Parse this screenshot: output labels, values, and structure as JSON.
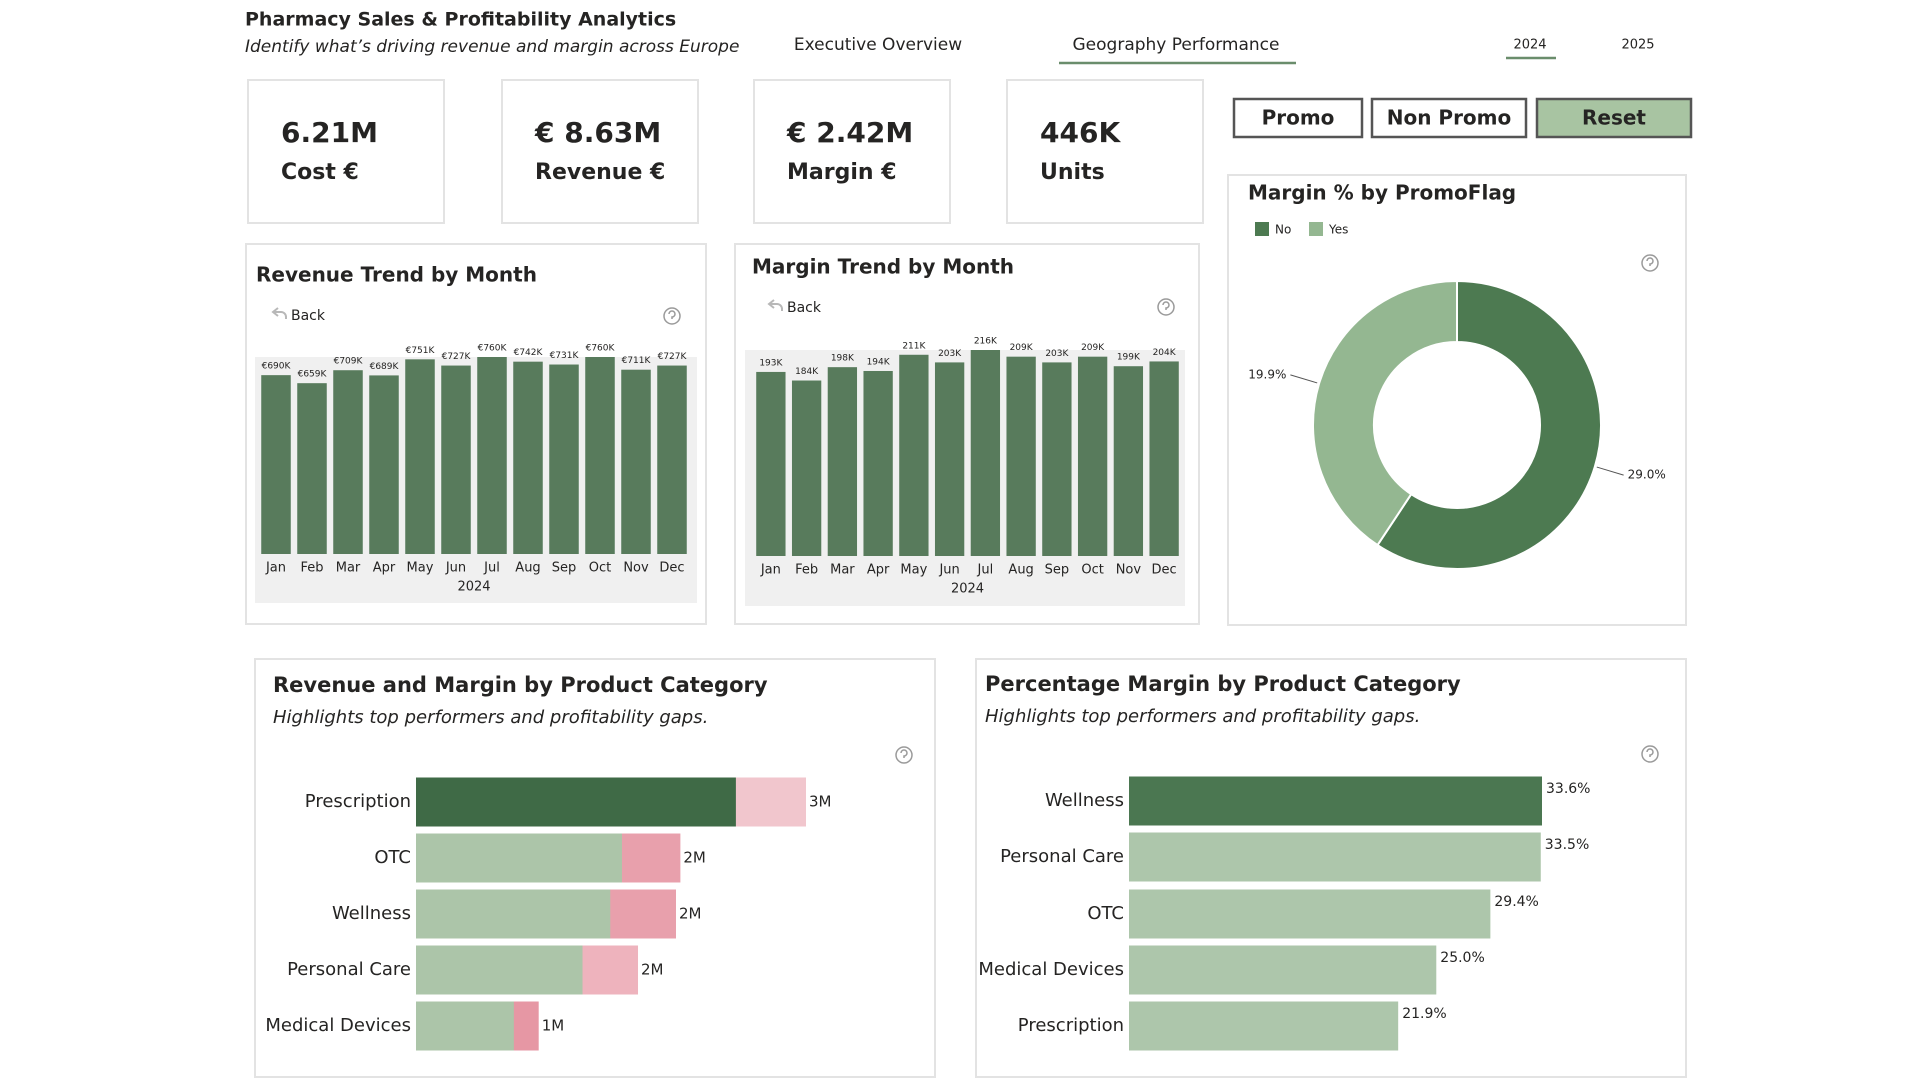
{
  "header": {
    "title": "Pharmacy Sales & Profitability Analytics",
    "subtitle": "Identify what’s driving revenue and margin across Europe"
  },
  "tabs": [
    "Executive Overview",
    "Geography Performance"
  ],
  "years": [
    "2024",
    "2025"
  ],
  "kpis": [
    {
      "value": "6.21M",
      "label": "Cost €"
    },
    {
      "value": "€ 8.63M",
      "label": "Revenue €"
    },
    {
      "value": "€ 2.42M",
      "label": "Margin €"
    },
    {
      "value": "446K",
      "label": "Units"
    }
  ],
  "buttons": [
    "Promo",
    "Non Promo",
    "Reset"
  ],
  "chart_data": [
    {
      "type": "bar",
      "title": "Revenue Trend by Month",
      "back_label": "Back",
      "xlabel": "2024",
      "categories": [
        "Jan",
        "Feb",
        "Mar",
        "Apr",
        "May",
        "Jun",
        "Jul",
        "Aug",
        "Sep",
        "Oct",
        "Nov",
        "Dec"
      ],
      "values": [
        690000,
        659000,
        709000,
        689000,
        751000,
        727000,
        760000,
        742000,
        731000,
        760000,
        711000,
        727000
      ],
      "value_labels": [
        "€690K",
        "€659K",
        "€709K",
        "€689K",
        "€751K",
        "€727K",
        "€760K",
        "€742K",
        "€731K",
        "€760K",
        "€711K",
        "€727K"
      ],
      "color": "#587b5c"
    },
    {
      "type": "bar",
      "title": "Margin Trend by Month",
      "back_label": "Back",
      "xlabel": "2024",
      "categories": [
        "Jan",
        "Feb",
        "Mar",
        "Apr",
        "May",
        "Jun",
        "Jul",
        "Aug",
        "Sep",
        "Oct",
        "Nov",
        "Dec"
      ],
      "values": [
        193000,
        184000,
        198000,
        194000,
        211000,
        203000,
        216000,
        209000,
        203000,
        209000,
        199000,
        204000
      ],
      "value_labels": [
        "193K",
        "184K",
        "198K",
        "194K",
        "211K",
        "203K",
        "216K",
        "209K",
        "203K",
        "209K",
        "199K",
        "204K"
      ],
      "color": "#587b5c"
    },
    {
      "type": "donut",
      "title": "Margin % by PromoFlag",
      "categories": [
        "No",
        "Yes"
      ],
      "values": [
        29.0,
        19.9
      ],
      "value_labels": [
        "29.0%",
        "19.9%"
      ],
      "colors": [
        "#4d7a51",
        "#94b791"
      ]
    },
    {
      "type": "hbar-overlay",
      "title": "Revenue and Margin by Product Category",
      "subtitle": "Highlights top performers and profitability gaps.",
      "categories": [
        "Prescription",
        "OTC",
        "Wellness",
        "Personal Care",
        "Medical Devices"
      ],
      "series": [
        {
          "values": [
            2670000,
            1810000,
            1780000,
            1520000,
            840000
          ],
          "value_labels": [
            "3M",
            "2M",
            "2M",
            "2M",
            "1M"
          ],
          "colors": [
            "#f1c6cd",
            "#e8a0ac",
            "#e8a0ac",
            "#eeb3bd",
            "#e697a4"
          ]
        },
        {
          "values": [
            2190000,
            1410000,
            1330000,
            1140000,
            670000
          ],
          "colors": [
            "#3f6a46",
            "#acc5a9",
            "#acc5a9",
            "#acc5a9",
            "#acc5a9"
          ]
        }
      ]
    },
    {
      "type": "hbar",
      "title": "Percentage Margin by Product Category",
      "subtitle": "Highlights top performers and profitability gaps.",
      "categories": [
        "Wellness",
        "Personal Care",
        "OTC",
        "Medical Devices",
        "Prescription"
      ],
      "values": [
        33.6,
        33.5,
        29.4,
        25.0,
        21.9
      ],
      "value_labels": [
        "33.6%",
        "33.5%",
        "29.4%",
        "25.0%",
        "21.9%"
      ],
      "colors": [
        "#4b7751",
        "#adc6ab",
        "#adc6ab",
        "#adc6ab",
        "#adc6ab"
      ]
    }
  ]
}
